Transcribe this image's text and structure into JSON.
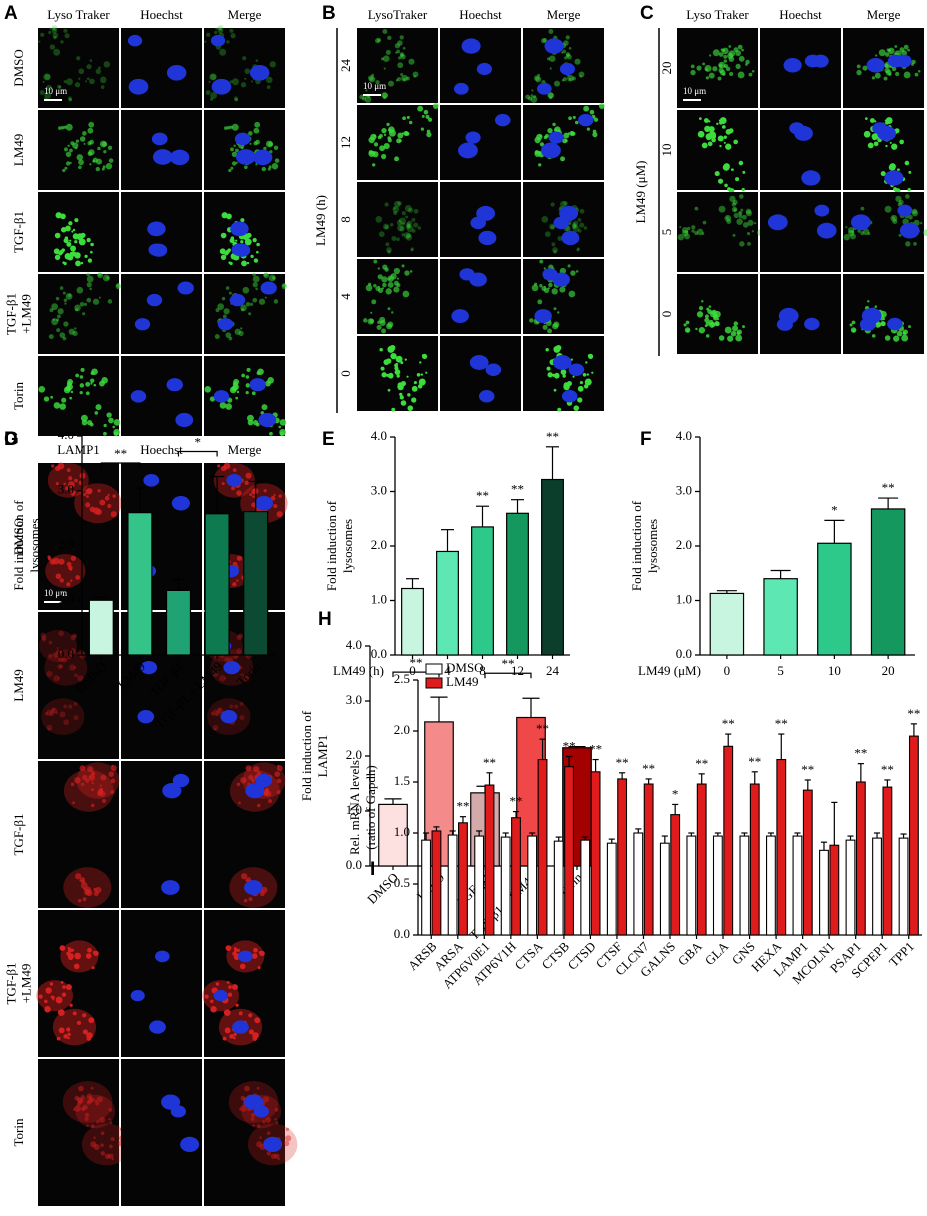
{
  "image_panels": [
    {
      "letter": "A",
      "color": "#3ddc3d",
      "columns": [
        "Lyso Traker",
        "Hoechst",
        "Merge"
      ],
      "rows": [
        "DMSO",
        "LM49",
        "TGF-β1",
        [
          "TGF-β1",
          "+LM49"
        ],
        "Torin"
      ],
      "scale_bar": "10 μm"
    },
    {
      "letter": "B",
      "color": "#3ddc3d",
      "columns": [
        "LysoTraker",
        "Hoechst",
        "Merge"
      ],
      "axis_label": "LM49 (h)",
      "rows": [
        "24",
        "12",
        "8",
        "4",
        "0"
      ],
      "scale_bar": "10 μm"
    },
    {
      "letter": "C",
      "color": "#3ddc3d",
      "columns": [
        "Lyso Traker",
        "Hoechst",
        "Merge"
      ],
      "axis_label": "LM49 (μM)",
      "rows": [
        "20",
        "10",
        "5",
        "0"
      ],
      "scale_bar": "10 μm"
    },
    {
      "letter": "G",
      "color": "#d42020",
      "columns": [
        "LAMP1",
        "Hoechst",
        "Merge"
      ],
      "rows": [
        "DMSO",
        "LM49",
        "TGF-β1",
        [
          "TGF-β1",
          "+LM49"
        ],
        "Torin"
      ],
      "scale_bar": "10 μm"
    }
  ],
  "chart_data": [
    {
      "type": "bar",
      "letter": "D",
      "ylabel": [
        "Fold induction of",
        "lysosomes"
      ],
      "categories": [
        "DMSO",
        "LM49",
        "TGF-β1",
        "TGF-β1 + LM49",
        "Torin"
      ],
      "values": [
        1.0,
        2.6,
        1.18,
        2.58,
        2.62
      ],
      "errors": [
        0.06,
        0.45,
        0.2,
        0.68,
        0.55
      ],
      "colors": [
        "#c8f5e0",
        "#34c48a",
        "#1fa374",
        "#0e7a50",
        "#0c4a33"
      ],
      "ylim": [
        0,
        4
      ],
      "yticks": [
        {
          "value": 0,
          "label": "0.0"
        },
        {
          "value": 1,
          "label": "1.0"
        },
        {
          "value": 2,
          "label": "2.0"
        },
        {
          "value": 3,
          "label": "3.0"
        },
        {
          "value": 4,
          "label": "4.0"
        }
      ],
      "brackets": [
        {
          "label": "**",
          "between": [
            0,
            1
          ]
        },
        {
          "label": "*",
          "between": [
            2,
            3
          ]
        }
      ]
    },
    {
      "type": "bar",
      "letter": "E",
      "ylabel": [
        "Fold induction of",
        "lysosomes"
      ],
      "xlabel": "LM49 (h)",
      "categories": [
        "0",
        "4",
        "8",
        "12",
        "24"
      ],
      "values": [
        1.22,
        1.9,
        2.35,
        2.6,
        3.22
      ],
      "errors": [
        0.18,
        0.4,
        0.38,
        0.25,
        0.6
      ],
      "significance": [
        null,
        null,
        "**",
        "**",
        "**"
      ],
      "colors": [
        "#c8f5e0",
        "#5de8b3",
        "#2cc98b",
        "#14985e",
        "#0b3f2b"
      ],
      "ylim": [
        0,
        4
      ],
      "yticks": [
        {
          "value": 0,
          "label": "0.0"
        },
        {
          "value": 1,
          "label": "1.0"
        },
        {
          "value": 2,
          "label": "2.0"
        },
        {
          "value": 3,
          "label": "3.0"
        },
        {
          "value": 4,
          "label": "4.0"
        }
      ]
    },
    {
      "type": "bar",
      "letter": "F",
      "ylabel": [
        "Fold induction of",
        "lysosomes"
      ],
      "xlabel": "LM49 (μM)",
      "categories": [
        "0",
        "5",
        "10",
        "20"
      ],
      "values": [
        1.13,
        1.4,
        2.05,
        2.68
      ],
      "errors": [
        0.05,
        0.15,
        0.42,
        0.2
      ],
      "significance": [
        null,
        null,
        "*",
        "**"
      ],
      "colors": [
        "#c8f5e0",
        "#5de8b3",
        "#2cc98b",
        "#14985e"
      ],
      "ylim": [
        0,
        4
      ],
      "yticks": [
        {
          "value": 0,
          "label": "0.0"
        },
        {
          "value": 1,
          "label": "1.0"
        },
        {
          "value": 2,
          "label": "2.0"
        },
        {
          "value": 3,
          "label": "3.0"
        },
        {
          "value": 4,
          "label": "4.0"
        }
      ]
    },
    {
      "type": "bar",
      "letter": "H",
      "ylabel": [
        "Fold induction of",
        "LAMP1"
      ],
      "categories": [
        "DMSO",
        "LM49",
        "TGF-β1",
        "TGF-β1 + LM49",
        "Torin"
      ],
      "values": [
        1.12,
        2.62,
        1.33,
        2.7,
        2.15
      ],
      "errors": [
        0.1,
        0.45,
        0.12,
        0.35,
        0.02
      ],
      "colors": [
        "#fde0e0",
        "#f58a8a",
        "#d4a9a9",
        "#f04848",
        "#a30000"
      ],
      "ylim": [
        0,
        4
      ],
      "yticks": [
        {
          "value": 0,
          "label": "0.0"
        },
        {
          "value": 1,
          "label": "1.0"
        },
        {
          "value": 2,
          "label": "2.0"
        },
        {
          "value": 3,
          "label": "3.0"
        },
        {
          "value": 4,
          "label": "4.0"
        }
      ],
      "brackets": [
        {
          "label": "**",
          "between": [
            0,
            1
          ]
        },
        {
          "label": "**",
          "between": [
            2,
            3
          ]
        }
      ]
    },
    {
      "type": "grouped_bar",
      "letter": "I",
      "ylabel": [
        "Rel. mRNA levels",
        "(ratio of Gapdh)"
      ],
      "legend": "top-left",
      "categories": [
        "ARSB",
        "ARSA",
        "ATP6V0E1",
        "ATP6V1H",
        "CTSA",
        "CTSB",
        "CTSD",
        "CTSF",
        "CLCN7",
        "GALNS",
        "GBA",
        "GLA",
        "GNS",
        "HEXA",
        "LAMP1",
        "MCOLN1",
        "PSAP1",
        "SCPEP1",
        "TPP1"
      ],
      "series": [
        {
          "name": "DMSO",
          "color": "#ffffff",
          "values": [
            0.93,
            0.98,
            0.97,
            0.96,
            0.97,
            0.92,
            0.93,
            0.9,
            1.0,
            0.9,
            0.97,
            0.97,
            0.97,
            0.97,
            0.97,
            0.83,
            0.93,
            0.95,
            0.95
          ],
          "errors": [
            0.07,
            0.04,
            0.05,
            0.04,
            0.03,
            0.04,
            0.03,
            0.04,
            0.04,
            0.07,
            0.03,
            0.03,
            0.03,
            0.03,
            0.03,
            0.08,
            0.04,
            0.05,
            0.04
          ]
        },
        {
          "name": "LM49",
          "color": "#e01b1b",
          "values": [
            1.02,
            1.1,
            1.47,
            1.15,
            1.72,
            1.65,
            1.6,
            1.53,
            1.48,
            1.18,
            1.48,
            1.85,
            1.48,
            1.72,
            1.42,
            0.88,
            1.5,
            1.45,
            1.95
          ],
          "errors": [
            0.04,
            0.06,
            0.12,
            0.06,
            0.2,
            0.1,
            0.12,
            0.06,
            0.05,
            0.1,
            0.1,
            0.12,
            0.12,
            0.25,
            0.1,
            0.42,
            0.18,
            0.07,
            0.12
          ],
          "significance": [
            null,
            "**",
            "**",
            "**",
            "**",
            "**",
            "**",
            "**",
            "**",
            "*",
            "**",
            "**",
            "**",
            "**",
            "**",
            null,
            "**",
            "**",
            "**"
          ]
        }
      ],
      "ylim": [
        0,
        2.5
      ],
      "yticks": [
        {
          "value": 0,
          "label": "0.0"
        },
        {
          "value": 0.5,
          "label": "0.5"
        },
        {
          "value": 1,
          "label": "1.0"
        },
        {
          "value": 1.5,
          "label": "1.5"
        },
        {
          "value": 2,
          "label": "2.0"
        },
        {
          "value": 2.5,
          "label": "2.5"
        }
      ]
    }
  ]
}
